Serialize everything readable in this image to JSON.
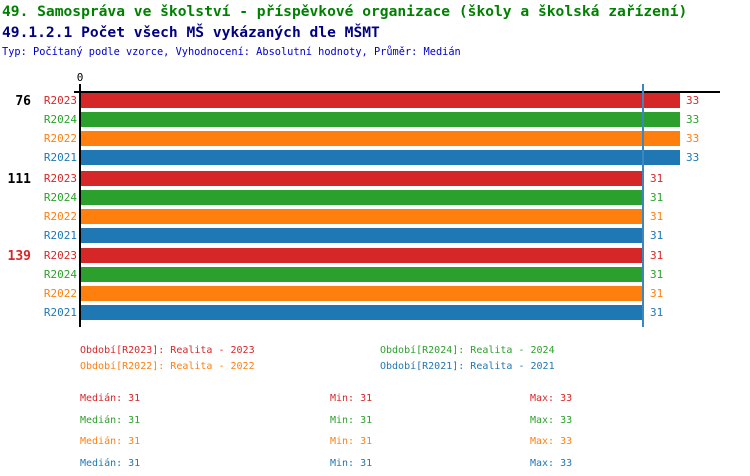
{
  "header": {
    "title_line1": "49. Samospráva ve školství - příspěvkové organizace (školy a školská zařízení)",
    "title_line2": "49.1.2.1 Počet všech MŠ vykázaných dle MŠMT",
    "meta_line": "Typ: Počítaný podle vzorce, Vyhodnocení: Absolutní hodnoty, Průměr: Medián",
    "colors": {
      "title_line1": "#008000",
      "title_line2": "#000080",
      "meta_line": "#0000CC"
    }
  },
  "series_colors": {
    "R2023": "#D62728",
    "R2024": "#2CA02C",
    "R2022": "#FF7F0E",
    "R2021": "#1F77B4"
  },
  "chart_data": {
    "type": "bar",
    "orientation": "horizontal",
    "x_axis": {
      "zero_label": "0"
    },
    "median_line": {
      "value": 31,
      "color": "#3C87C0"
    },
    "group_label_colors": {
      "normal": "#000000",
      "highlight": "#D62728"
    },
    "groups": [
      {
        "label": "76",
        "highlight": false,
        "bars": [
          {
            "series": "R2023",
            "value": 33
          },
          {
            "series": "R2024",
            "value": 33
          },
          {
            "series": "R2022",
            "value": 33
          },
          {
            "series": "R2021",
            "value": 33
          }
        ]
      },
      {
        "label": "111",
        "highlight": false,
        "bars": [
          {
            "series": "R2023",
            "value": 31
          },
          {
            "series": "R2024",
            "value": 31
          },
          {
            "series": "R2022",
            "value": 31
          },
          {
            "series": "R2021",
            "value": 31
          }
        ]
      },
      {
        "label": "139",
        "highlight": true,
        "bars": [
          {
            "series": "R2023",
            "value": 31
          },
          {
            "series": "R2024",
            "value": 31
          },
          {
            "series": "R2022",
            "value": 31
          },
          {
            "series": "R2021",
            "value": 31
          }
        ]
      }
    ]
  },
  "legend": [
    {
      "text": "Období[R2023]: Realita - 2023",
      "series": "R2023"
    },
    {
      "text": "Období[R2024]: Realita - 2024",
      "series": "R2024"
    },
    {
      "text": "Období[R2022]: Realita - 2022",
      "series": "R2022"
    },
    {
      "text": "Období[R2021]: Realita - 2021",
      "series": "R2021"
    }
  ],
  "stats": {
    "labels": {
      "median": "Medián",
      "min": "Min",
      "max": "Max"
    },
    "rows": [
      {
        "series": "R2023",
        "median": "31",
        "min": "31",
        "max": "33"
      },
      {
        "series": "R2024",
        "median": "31",
        "min": "31",
        "max": "33"
      },
      {
        "series": "R2022",
        "median": "31",
        "min": "31",
        "max": "33"
      },
      {
        "series": "R2021",
        "median": "31",
        "min": "31",
        "max": "33"
      }
    ]
  }
}
